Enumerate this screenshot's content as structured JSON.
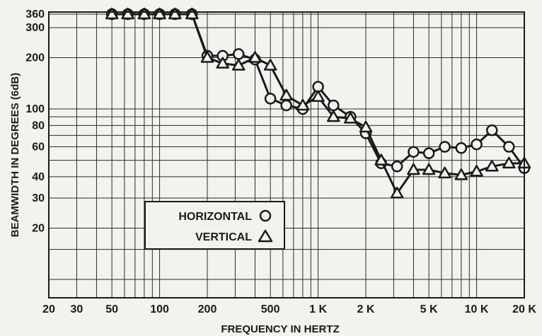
{
  "chart_data": {
    "type": "line",
    "xlabel": "FREQUENCY IN HERTZ",
    "ylabel": "BEAMWIDTH IN DEGREES (6dB)",
    "x_scale": "log",
    "y_scale": "log",
    "xlim": [
      20,
      20000
    ],
    "ylim": [
      10,
      400
    ],
    "x_ticks": [
      {
        "value": 20,
        "label": "20"
      },
      {
        "value": 30,
        "label": "30"
      },
      {
        "value": 50,
        "label": "50"
      },
      {
        "value": 100,
        "label": "100"
      },
      {
        "value": 200,
        "label": "200"
      },
      {
        "value": 500,
        "label": "500"
      },
      {
        "value": 1000,
        "label": "1 K"
      },
      {
        "value": 2000,
        "label": "2 K"
      },
      {
        "value": 5000,
        "label": "5 K"
      },
      {
        "value": 10000,
        "label": "10 K"
      },
      {
        "value": 20000,
        "label": "20 K"
      }
    ],
    "y_ticks": [
      {
        "value": 20,
        "label": "20"
      },
      {
        "value": 30,
        "label": "30"
      },
      {
        "value": 40,
        "label": "40"
      },
      {
        "value": 60,
        "label": "60"
      },
      {
        "value": 80,
        "label": "80"
      },
      {
        "value": 100,
        "label": "100"
      },
      {
        "value": 200,
        "label": "200"
      },
      {
        "value": 300,
        "label": "300"
      },
      {
        "value": 360,
        "label": "360"
      }
    ],
    "grid": true,
    "legend_position": "lower-left",
    "series": [
      {
        "name": "HORIZONTAL",
        "marker": "circle",
        "points": [
          [
            50,
            360
          ],
          [
            63,
            360
          ],
          [
            80,
            360
          ],
          [
            100,
            360
          ],
          [
            125,
            360
          ],
          [
            160,
            360
          ],
          [
            200,
            205
          ],
          [
            250,
            205
          ],
          [
            315,
            210
          ],
          [
            400,
            195
          ],
          [
            500,
            115
          ],
          [
            630,
            105
          ],
          [
            800,
            100
          ],
          [
            1000,
            135
          ],
          [
            1250,
            105
          ],
          [
            1600,
            90
          ],
          [
            2000,
            72
          ],
          [
            2500,
            48
          ],
          [
            3150,
            46
          ],
          [
            4000,
            56
          ],
          [
            5000,
            55
          ],
          [
            6300,
            60
          ],
          [
            8000,
            59
          ],
          [
            10000,
            62
          ],
          [
            12500,
            75
          ],
          [
            16000,
            60
          ],
          [
            20000,
            45
          ]
        ]
      },
      {
        "name": "VERTICAL",
        "marker": "triangle",
        "points": [
          [
            50,
            360
          ],
          [
            63,
            360
          ],
          [
            80,
            360
          ],
          [
            100,
            360
          ],
          [
            125,
            360
          ],
          [
            160,
            360
          ],
          [
            200,
            200
          ],
          [
            250,
            185
          ],
          [
            315,
            180
          ],
          [
            400,
            200
          ],
          [
            500,
            180
          ],
          [
            630,
            120
          ],
          [
            800,
            105
          ],
          [
            1000,
            118
          ],
          [
            1250,
            90
          ],
          [
            1600,
            88
          ],
          [
            2000,
            78
          ],
          [
            2500,
            50
          ],
          [
            3150,
            32
          ],
          [
            4000,
            44
          ],
          [
            5000,
            44
          ],
          [
            6300,
            42
          ],
          [
            8000,
            41
          ],
          [
            10000,
            43
          ],
          [
            12500,
            46
          ],
          [
            16000,
            48
          ],
          [
            20000,
            48
          ]
        ]
      }
    ],
    "legend": [
      {
        "label": "HORIZONTAL",
        "marker": "circle"
      },
      {
        "label": "VERTICAL",
        "marker": "triangle"
      }
    ],
    "colors": {
      "ink": "#1a1a1a",
      "paper": "#f4f2ee",
      "grid": "#2a2a2a"
    }
  }
}
